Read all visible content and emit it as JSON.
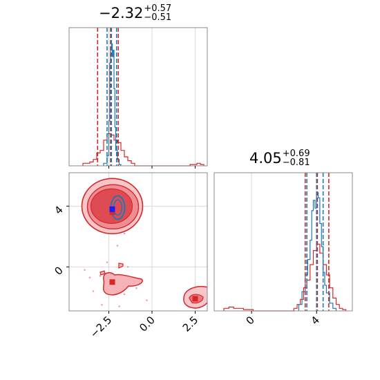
{
  "chart_data": {
    "type": "corner",
    "parameters": [
      {
        "title": {
          "value": "−2.32",
          "plus": "+0.57",
          "minus": "−0.51"
        },
        "xlim": [
          -4.8,
          3.2
        ],
        "x_ticks": [
          -2.5,
          0.0,
          2.5
        ],
        "x_tick_labels": [
          "−2.5",
          "0.0",
          "2.5"
        ],
        "quantile_lines": {
          "red": [
            -3.15,
            -2.4,
            -1.95
          ],
          "blue": [
            -2.6,
            -2.35,
            -2.05
          ]
        },
        "histogram_red": {
          "bins": [
            -4.0,
            -3.6,
            -3.4,
            -3.2,
            -3.0,
            -2.8,
            -2.6,
            -2.4,
            -2.2,
            -2.0,
            -1.8,
            -1.6,
            -1.4,
            -1.2,
            -1.0,
            2.0,
            2.2,
            2.4,
            2.6,
            2.8,
            3.0
          ],
          "heights": [
            0.02,
            0.03,
            0.05,
            0.1,
            0.12,
            0.2,
            0.25,
            0.24,
            0.2,
            0.18,
            0.12,
            0.07,
            0.04,
            0.02,
            0.0,
            0.0,
            0.01,
            0.01,
            0.02,
            0.01
          ]
        },
        "histogram_blue": {
          "bins": [
            -2.8,
            -2.6,
            -2.5,
            -2.45,
            -2.4,
            -2.35,
            -2.3,
            -2.25,
            -2.2,
            -2.15,
            -2.1,
            -2.0,
            -1.9,
            -1.8
          ],
          "heights": [
            0.02,
            0.08,
            0.35,
            0.8,
            0.92,
            0.95,
            0.85,
            0.9,
            0.6,
            0.3,
            0.12,
            0.05,
            0.01
          ]
        }
      },
      {
        "title": {
          "value": "4.05",
          "plus": "+0.69",
          "minus": "−0.81"
        },
        "xlim": [
          -2.3,
          6.2
        ],
        "x_ticks": [
          0,
          4
        ],
        "x_tick_labels": [
          "0",
          "4"
        ],
        "quantile_lines": {
          "red": [
            3.3,
            4.05,
            4.75
          ],
          "blue": [
            3.4,
            4.0,
            4.4
          ]
        },
        "histogram_red": {
          "bins": [
            -1.7,
            -1.4,
            -1.1,
            -0.8,
            -0.5,
            -0.2,
            0.1,
            2.6,
            2.8,
            3.0,
            3.2,
            3.4,
            3.6,
            3.8,
            4.0,
            4.2,
            4.4,
            4.6,
            4.8,
            5.0,
            5.2,
            5.4,
            5.6,
            5.8
          ],
          "heights": [
            0.02,
            0.03,
            0.02,
            0.02,
            0.01,
            0.01,
            0.0,
            0.02,
            0.05,
            0.09,
            0.18,
            0.24,
            0.36,
            0.47,
            0.52,
            0.45,
            0.36,
            0.28,
            0.18,
            0.1,
            0.05,
            0.02,
            0.01
          ]
        },
        "histogram_blue": {
          "bins": [
            2.9,
            3.1,
            3.3,
            3.45,
            3.6,
            3.7,
            3.8,
            3.9,
            4.0,
            4.1,
            4.2,
            4.3,
            4.4,
            4.5,
            4.6,
            4.8,
            5.0,
            5.2
          ],
          "heights": [
            0.05,
            0.15,
            0.28,
            0.4,
            0.55,
            0.78,
            0.86,
            0.8,
            0.92,
            0.88,
            0.68,
            0.5,
            0.3,
            0.2,
            0.14,
            0.06,
            0.02
          ]
        }
      }
    ],
    "joint_2d": {
      "xlim": [
        -4.8,
        3.2
      ],
      "ylim": [
        -2.9,
        6.2
      ],
      "y_ticks": [
        0,
        4
      ],
      "y_tick_labels": [
        "0",
        "4"
      ],
      "red_markers": [
        [
          -2.3,
          3.6
        ],
        [
          -2.3,
          -1.0
        ],
        [
          2.5,
          -2.1
        ]
      ],
      "blue_markers": [
        [
          -2.3,
          3.8
        ]
      ],
      "colors": {
        "red": "#d62728",
        "blue": "#1f77b4",
        "grid": "#d9d9d9"
      }
    }
  }
}
